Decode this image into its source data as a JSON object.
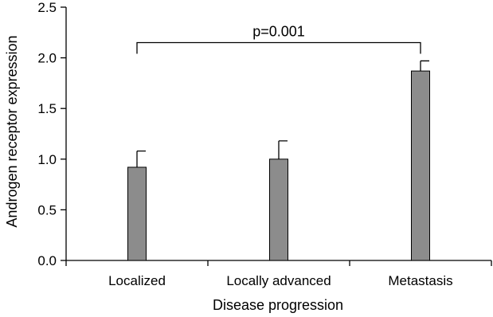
{
  "chart_data": {
    "type": "bar",
    "categories": [
      "Localized",
      "Locally advanced",
      "Metastasis"
    ],
    "series": [
      {
        "values": [
          0.92,
          1.0,
          1.87
        ],
        "error_upper": [
          0.16,
          0.18,
          0.1
        ]
      }
    ],
    "xlabel": "Disease progression",
    "ylabel": "Androgen receptor expression",
    "ylim": [
      0,
      2.5
    ],
    "yticks": [
      0.0,
      0.5,
      1.0,
      1.5,
      2.0,
      2.5
    ],
    "ytick_labels": [
      "0.0",
      "0.5",
      "1.0",
      "1.5",
      "2.0",
      "2.5"
    ],
    "grid": false,
    "colors": {
      "bar": "#8c8c8c",
      "axis": "#000000"
    },
    "annotations": [
      {
        "text": "p=0.001",
        "from_category": 0,
        "to_category": 2,
        "y": 2.15
      }
    ]
  }
}
